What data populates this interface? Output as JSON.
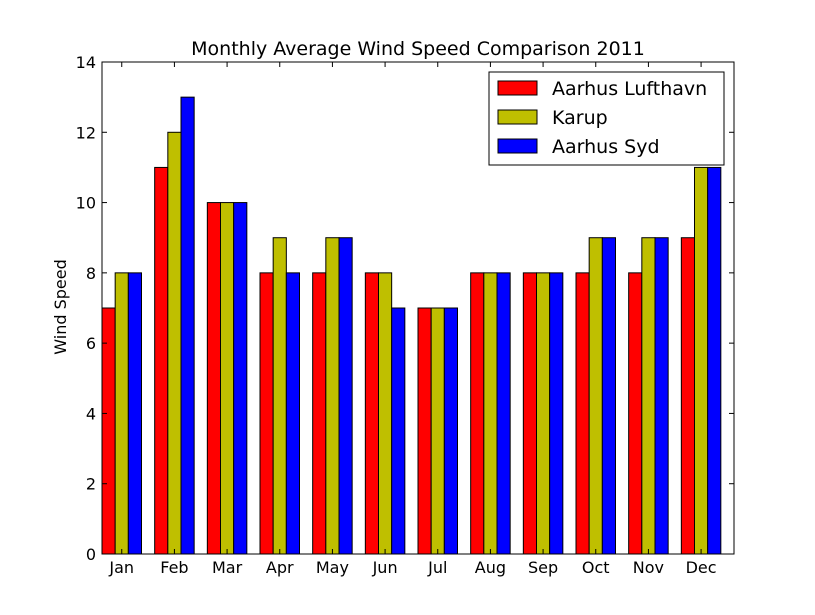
{
  "chart_data": {
    "type": "bar",
    "title": "Monthly Average Wind Speed Comparison 2011",
    "xlabel": "",
    "ylabel": "Wind Speed",
    "categories": [
      "Jan",
      "Feb",
      "Mar",
      "Apr",
      "May",
      "Jun",
      "Jul",
      "Aug",
      "Sep",
      "Oct",
      "Nov",
      "Dec"
    ],
    "series": [
      {
        "name": "Aarhus Lufthavn",
        "color": "#ff0000",
        "values": [
          7,
          11,
          10,
          8,
          8,
          8,
          7,
          8,
          8,
          8,
          8,
          9
        ]
      },
      {
        "name": "Karup",
        "color": "#bfbf00",
        "values": [
          8,
          12,
          10,
          9,
          9,
          8,
          7,
          8,
          8,
          9,
          9,
          11
        ]
      },
      {
        "name": "Aarhus Syd",
        "color": "#0000ff",
        "values": [
          8,
          13,
          10,
          8,
          9,
          7,
          7,
          8,
          8,
          9,
          9,
          11
        ]
      }
    ],
    "ylim": [
      0,
      14
    ],
    "yticks": [
      "0",
      "2",
      "4",
      "6",
      "8",
      "10",
      "12",
      "14"
    ],
    "grid": false,
    "legend_position": "top-right"
  }
}
